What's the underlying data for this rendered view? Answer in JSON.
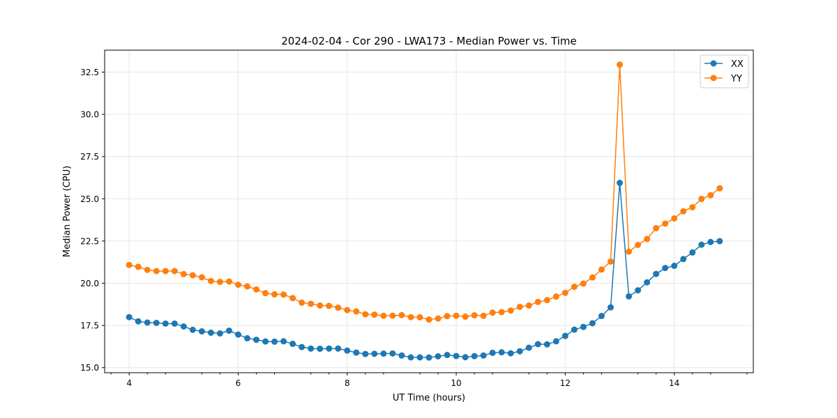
{
  "chart_data": {
    "type": "line",
    "title": "2024-02-04 - Cor 290 - LWA173 - Median Power vs. Time",
    "xlabel": "UT Time (hours)",
    "ylabel": "Median Power (CPU)",
    "xlim": [
      3.55,
      15.45
    ],
    "ylim": [
      14.7,
      33.8
    ],
    "x_ticks": [
      4,
      6,
      8,
      10,
      12,
      14
    ],
    "x_tick_labels": [
      "4",
      "6",
      "8",
      "10",
      "12",
      "14"
    ],
    "x_minor_ticks": [
      3.6667,
      4.3333,
      4.6667,
      5.3333,
      5.6667,
      6.3333,
      6.6667,
      7.3333,
      7.6667,
      8.3333,
      8.6667,
      9.3333,
      9.6667,
      10.3333,
      10.6667,
      11.3333,
      11.6667,
      12.3333,
      12.6667,
      13.3333,
      13.6667,
      14.3333,
      14.6667,
      15.3333
    ],
    "y_ticks": [
      15.0,
      17.5,
      20.0,
      22.5,
      25.0,
      27.5,
      30.0,
      32.5
    ],
    "y_tick_labels": [
      "15.0",
      "17.5",
      "20.0",
      "22.5",
      "25.0",
      "27.5",
      "30.0",
      "32.5"
    ],
    "grid": true,
    "legend_position": "top-right",
    "x": [
      4.0,
      4.1667,
      4.3333,
      4.5,
      4.6667,
      4.8333,
      5.0,
      5.1667,
      5.3333,
      5.5,
      5.6667,
      5.8333,
      6.0,
      6.1667,
      6.3333,
      6.5,
      6.6667,
      6.8333,
      7.0,
      7.1667,
      7.3333,
      7.5,
      7.6667,
      7.8333,
      8.0,
      8.1667,
      8.3333,
      8.5,
      8.6667,
      8.8333,
      9.0,
      9.1667,
      9.3333,
      9.5,
      9.6667,
      9.8333,
      10.0,
      10.1667,
      10.3333,
      10.5,
      10.6667,
      10.8333,
      11.0,
      11.1667,
      11.3333,
      11.5,
      11.6667,
      11.8333,
      12.0,
      12.1667,
      12.3333,
      12.5,
      12.6667,
      12.8333,
      13.0,
      13.1667,
      13.3333,
      13.5,
      13.6667,
      13.8333,
      14.0,
      14.1667,
      14.3333,
      14.5,
      14.6667,
      14.8333
    ],
    "series": [
      {
        "name": "XX",
        "color": "#1f77b4",
        "values": [
          17.99,
          17.74,
          17.67,
          17.65,
          17.61,
          17.61,
          17.44,
          17.24,
          17.15,
          17.07,
          17.03,
          17.19,
          16.96,
          16.74,
          16.65,
          16.55,
          16.54,
          16.56,
          16.41,
          16.22,
          16.13,
          16.12,
          16.13,
          16.13,
          16.01,
          15.89,
          15.81,
          15.82,
          15.83,
          15.84,
          15.72,
          15.61,
          15.61,
          15.6,
          15.67,
          15.75,
          15.69,
          15.62,
          15.68,
          15.72,
          15.88,
          15.91,
          15.85,
          15.97,
          16.18,
          16.39,
          16.38,
          16.56,
          16.88,
          17.25,
          17.41,
          17.63,
          18.06,
          18.57,
          25.94,
          19.22,
          19.58,
          20.05,
          20.55,
          20.9,
          21.03,
          21.43,
          21.82,
          22.28,
          22.44,
          22.49
        ]
      },
      {
        "name": "YY",
        "color": "#ff7f0e",
        "values": [
          21.08,
          20.97,
          20.79,
          20.72,
          20.72,
          20.72,
          20.54,
          20.47,
          20.35,
          20.13,
          20.08,
          20.1,
          19.91,
          19.81,
          19.63,
          19.41,
          19.34,
          19.33,
          19.12,
          18.85,
          18.78,
          18.68,
          18.66,
          18.55,
          18.41,
          18.33,
          18.16,
          18.14,
          18.07,
          18.08,
          18.11,
          17.99,
          17.98,
          17.85,
          17.91,
          18.05,
          18.07,
          18.02,
          18.1,
          18.07,
          18.26,
          18.29,
          18.38,
          18.6,
          18.68,
          18.89,
          19.0,
          19.21,
          19.43,
          19.79,
          19.98,
          20.34,
          20.81,
          21.28,
          32.94,
          21.87,
          22.27,
          22.62,
          23.26,
          23.53,
          23.84,
          24.26,
          24.5,
          24.99,
          25.21,
          25.62
        ]
      }
    ]
  }
}
